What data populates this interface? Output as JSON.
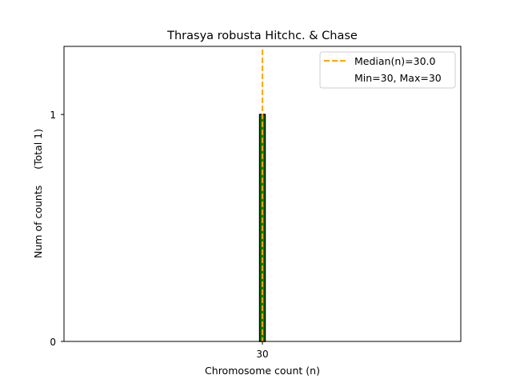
{
  "chart_data": {
    "type": "bar",
    "title": "Thrasya robusta Hitchc. & Chase",
    "xlabel": "Chromosome count (n)",
    "ylabel": "Num of counts     (Total 1)",
    "categories": [
      "30"
    ],
    "x": [
      30
    ],
    "values": [
      1
    ],
    "xlim": [
      25,
      35
    ],
    "ylim": [
      0,
      1.3
    ],
    "yticks": [
      "0",
      "1"
    ],
    "xticks": [
      "30"
    ],
    "grid": false,
    "bar_color": "#008000",
    "bar_edge_color": "#000000",
    "median": 30.0,
    "median_color": "#FFA500",
    "legend": {
      "placement": "top-right",
      "entries": [
        "Median(n)=30.0",
        "Min=30, Max=30"
      ]
    }
  }
}
